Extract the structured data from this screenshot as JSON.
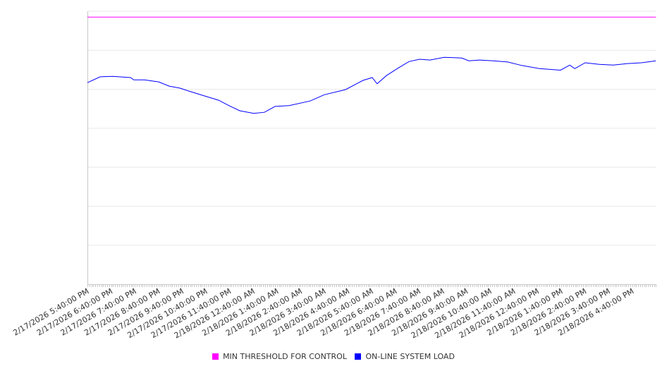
{
  "chart_data": {
    "type": "line",
    "title": "",
    "xlabel": "",
    "ylabel": "",
    "y_tick_labels_shown": false,
    "ylim": [
      0,
      7
    ],
    "xlim_hours": [
      0,
      24
    ],
    "grid": "horizontal",
    "legend_position": "bottom",
    "x_tick_labels": [
      "2/17/2026 5:40:00 PM",
      "2/17/2026 6:40:00 PM",
      "2/17/2026 7:40:00 PM",
      "2/17/2026 8:40:00 PM",
      "2/17/2026 9:40:00 PM",
      "2/17/2026 10:40:00 PM",
      "2/17/2026 11:40:00 PM",
      "2/18/2026 12:40:00 AM",
      "2/18/2026 1:40:00 AM",
      "2/18/2026 2:40:00 AM",
      "2/18/2026 3:40:00 AM",
      "2/18/2026 4:40:00 AM",
      "2/18/2026 5:40:00 AM",
      "2/18/2026 6:40:00 AM",
      "2/18/2026 7:40:00 AM",
      "2/18/2026 8:40:00 AM",
      "2/18/2026 9:40:00 AM",
      "2/18/2026 10:40:00 AM",
      "2/18/2026 11:40:00 AM",
      "2/18/2026 12:40:00 PM",
      "2/18/2026 1:40:00 PM",
      "2/18/2026 2:40:00 PM",
      "2/18/2026 3:40:00 PM",
      "2/18/2026 4:40:00 PM"
    ],
    "series": [
      {
        "name": "MIN THRESHOLD FOR CONTROL",
        "color": "#ff00ff",
        "x_hours": [
          0,
          24
        ],
        "values": [
          6.85,
          6.85
        ]
      },
      {
        "name": "ON-LINE SYSTEM LOAD",
        "color": "#0000ff",
        "x_hours": [
          0,
          0.54,
          1.07,
          1.82,
          1.96,
          2.41,
          3.01,
          3.45,
          3.9,
          4.35,
          4.94,
          5.54,
          5.98,
          6.43,
          7.02,
          7.47,
          7.92,
          8.51,
          9.4,
          10,
          10.89,
          11.64,
          12.02,
          12.23,
          12.62,
          13.13,
          13.57,
          14.02,
          14.46,
          15.06,
          15.8,
          16.1,
          16.55,
          17.14,
          17.74,
          18.33,
          19.08,
          19.97,
          20.36,
          20.57,
          21.01,
          21.61,
          22.2,
          22.8,
          23.39,
          23.99
        ],
        "values": [
          5.17,
          5.32,
          5.33,
          5.3,
          5.24,
          5.24,
          5.19,
          5.08,
          5.03,
          4.94,
          4.83,
          4.72,
          4.58,
          4.45,
          4.38,
          4.41,
          4.56,
          4.58,
          4.7,
          4.86,
          4.99,
          5.23,
          5.3,
          5.14,
          5.35,
          5.55,
          5.71,
          5.77,
          5.75,
          5.82,
          5.8,
          5.73,
          5.75,
          5.73,
          5.7,
          5.61,
          5.53,
          5.49,
          5.62,
          5.53,
          5.68,
          5.64,
          5.62,
          5.66,
          5.68,
          5.73
        ]
      }
    ]
  }
}
